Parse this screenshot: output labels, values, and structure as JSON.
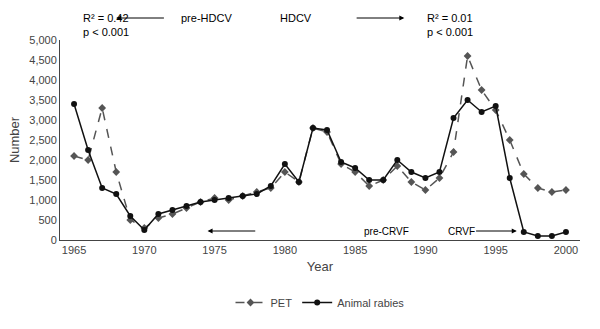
{
  "chart_data": {
    "type": "line",
    "xlabel": "Year",
    "ylabel": "Number",
    "x": [
      1965,
      1966,
      1967,
      1968,
      1969,
      1970,
      1971,
      1972,
      1973,
      1974,
      1975,
      1976,
      1977,
      1978,
      1979,
      1980,
      1981,
      1982,
      1983,
      1984,
      1985,
      1986,
      1987,
      1988,
      1989,
      1990,
      1991,
      1992,
      1993,
      1994,
      1995,
      1996,
      1997,
      1998,
      1999,
      2000
    ],
    "series": [
      {
        "name": "PET",
        "color": "#555555",
        "marker": "diamond",
        "line_style": "dashed",
        "values": [
          2100,
          2000,
          3300,
          1700,
          500,
          300,
          550,
          650,
          800,
          950,
          1050,
          1000,
          1100,
          1200,
          1300,
          1700,
          1450,
          2800,
          2700,
          1900,
          1700,
          1350,
          1500,
          1850,
          1450,
          1250,
          1550,
          2200,
          4600,
          3750,
          3250,
          2500,
          1650,
          1300,
          1200,
          1250
        ]
      },
      {
        "name": "Animal rabies",
        "color": "#111111",
        "marker": "circle",
        "line_style": "solid",
        "values": [
          3400,
          2250,
          1300,
          1150,
          600,
          250,
          650,
          750,
          850,
          950,
          1000,
          1050,
          1100,
          1150,
          1350,
          1900,
          1450,
          2800,
          2750,
          1950,
          1800,
          1500,
          1500,
          2000,
          1700,
          1550,
          1700,
          3050,
          3500,
          3200,
          3350,
          1550,
          200,
          100,
          100,
          200
        ]
      }
    ],
    "xlim": [
      1964,
      2001
    ],
    "xticks": [
      1965,
      1970,
      1975,
      1980,
      1985,
      1990,
      1995,
      2000
    ],
    "ylim": [
      0,
      5000
    ],
    "yticks": [
      0,
      500,
      {
        "value": 1000,
        "label": "1,000"
      },
      {
        "value": 1500,
        "label": "1,500"
      },
      {
        "value": 2000,
        "label": "2,000"
      },
      {
        "value": 2500,
        "label": "2,500"
      },
      {
        "value": 3000,
        "label": "3,000"
      },
      {
        "value": 3500,
        "label": "3,500"
      },
      {
        "value": 4000,
        "label": "4,000"
      },
      {
        "value": 4500,
        "label": "4,500"
      },
      {
        "value": 5000,
        "label": "5,000"
      }
    ],
    "annotations": [
      "R² = 0.42",
      "p < 0.001",
      "pre-HDCV",
      "HDCV",
      "R² = 0.01",
      "p < 0.001",
      "pre-CRVF",
      "CRVF"
    ],
    "grid": false,
    "legend": "bottom"
  }
}
